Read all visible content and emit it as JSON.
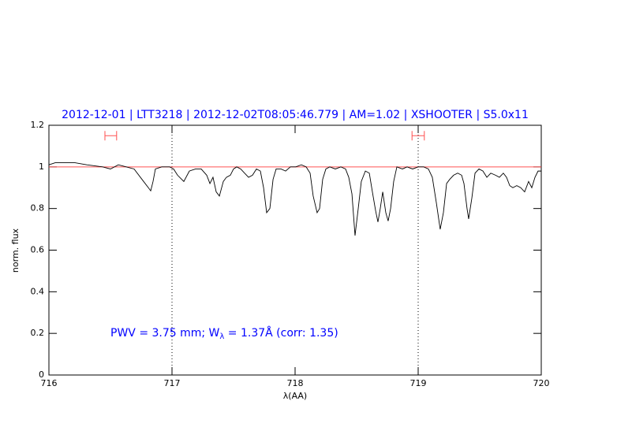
{
  "chart_data": {
    "type": "line",
    "title": "2012-12-01 | LTT3218 | 2012-12-02T08:05:46.779 | AM=1.02 | XSHOOTER | S5.0x11",
    "x_label": "λ(AA)",
    "y_label": "norm. flux",
    "annotation": [
      "PWV = 3.75 mm; W",
      "λ",
      " = 1.37Å (corr: 1.35)"
    ],
    "xlim": [
      716,
      720
    ],
    "xticks": [
      716,
      717,
      718,
      719,
      720
    ],
    "ylim": [
      0,
      1.2
    ],
    "yticks": [
      0,
      0.2,
      0.4,
      0.6,
      0.8,
      1,
      1.2
    ],
    "vlines": [
      717,
      719
    ],
    "hline": 1,
    "hline_color": "#ff5050",
    "markers": [
      {
        "x": [
          716.455,
          716.55
        ],
        "y": 1.15
      },
      {
        "x": [
          718.95,
          719.05
        ],
        "y": 1.15
      }
    ],
    "marker_color": "#ff5050",
    "series": [
      {
        "color": "#000000",
        "x": [
          716.0,
          716.051,
          716.115,
          716.212,
          716.308,
          716.436,
          716.5,
          716.564,
          716.628,
          716.692,
          716.769,
          716.808,
          716.827,
          716.846,
          716.865,
          716.917,
          716.981,
          717.013,
          717.045,
          717.096,
          717.141,
          717.192,
          717.237,
          717.282,
          717.308,
          717.333,
          717.359,
          717.385,
          717.417,
          717.442,
          717.474,
          717.5,
          717.526,
          717.558,
          717.59,
          717.622,
          717.654,
          717.686,
          717.718,
          717.744,
          717.769,
          717.795,
          717.821,
          717.846,
          717.885,
          717.923,
          717.962,
          718.006,
          718.051,
          718.09,
          718.122,
          718.147,
          718.179,
          718.199,
          718.224,
          718.25,
          718.282,
          718.327,
          718.372,
          718.41,
          718.436,
          718.462,
          718.487,
          718.513,
          718.538,
          718.571,
          718.603,
          718.628,
          718.654,
          718.673,
          718.692,
          718.712,
          718.737,
          718.756,
          718.776,
          718.801,
          718.827,
          718.872,
          718.91,
          718.955,
          719.0,
          719.045,
          719.083,
          719.115,
          719.147,
          719.179,
          719.205,
          719.231,
          719.256,
          719.288,
          719.321,
          719.353,
          719.372,
          719.397,
          719.41,
          719.436,
          719.462,
          719.494,
          719.526,
          719.558,
          719.59,
          719.628,
          719.66,
          719.692,
          719.718,
          719.744,
          719.769,
          719.801,
          719.833,
          719.865,
          719.897,
          719.923,
          719.949,
          719.974,
          720.0
        ],
        "values": [
          1.01,
          1.02,
          1.02,
          1.02,
          1.01,
          1.0,
          0.99,
          1.01,
          1.0,
          0.99,
          0.93,
          0.9,
          0.885,
          0.93,
          0.99,
          1.0,
          1.0,
          0.99,
          0.96,
          0.93,
          0.98,
          0.99,
          0.99,
          0.96,
          0.92,
          0.95,
          0.88,
          0.86,
          0.93,
          0.95,
          0.96,
          0.99,
          1.0,
          0.99,
          0.97,
          0.95,
          0.96,
          0.99,
          0.98,
          0.9,
          0.78,
          0.8,
          0.94,
          0.99,
          0.99,
          0.98,
          1.0,
          1.0,
          1.01,
          1.0,
          0.97,
          0.86,
          0.78,
          0.8,
          0.94,
          0.99,
          1.0,
          0.99,
          1.0,
          0.99,
          0.95,
          0.87,
          0.67,
          0.8,
          0.93,
          0.98,
          0.97,
          0.88,
          0.79,
          0.735,
          0.8,
          0.88,
          0.78,
          0.74,
          0.8,
          0.93,
          1.0,
          0.99,
          1.0,
          0.99,
          1.0,
          1.0,
          0.99,
          0.95,
          0.83,
          0.7,
          0.78,
          0.92,
          0.94,
          0.96,
          0.97,
          0.96,
          0.92,
          0.8,
          0.75,
          0.85,
          0.97,
          0.99,
          0.98,
          0.95,
          0.97,
          0.96,
          0.95,
          0.97,
          0.95,
          0.91,
          0.9,
          0.91,
          0.9,
          0.88,
          0.93,
          0.9,
          0.95,
          0.98,
          0.98
        ]
      }
    ]
  }
}
